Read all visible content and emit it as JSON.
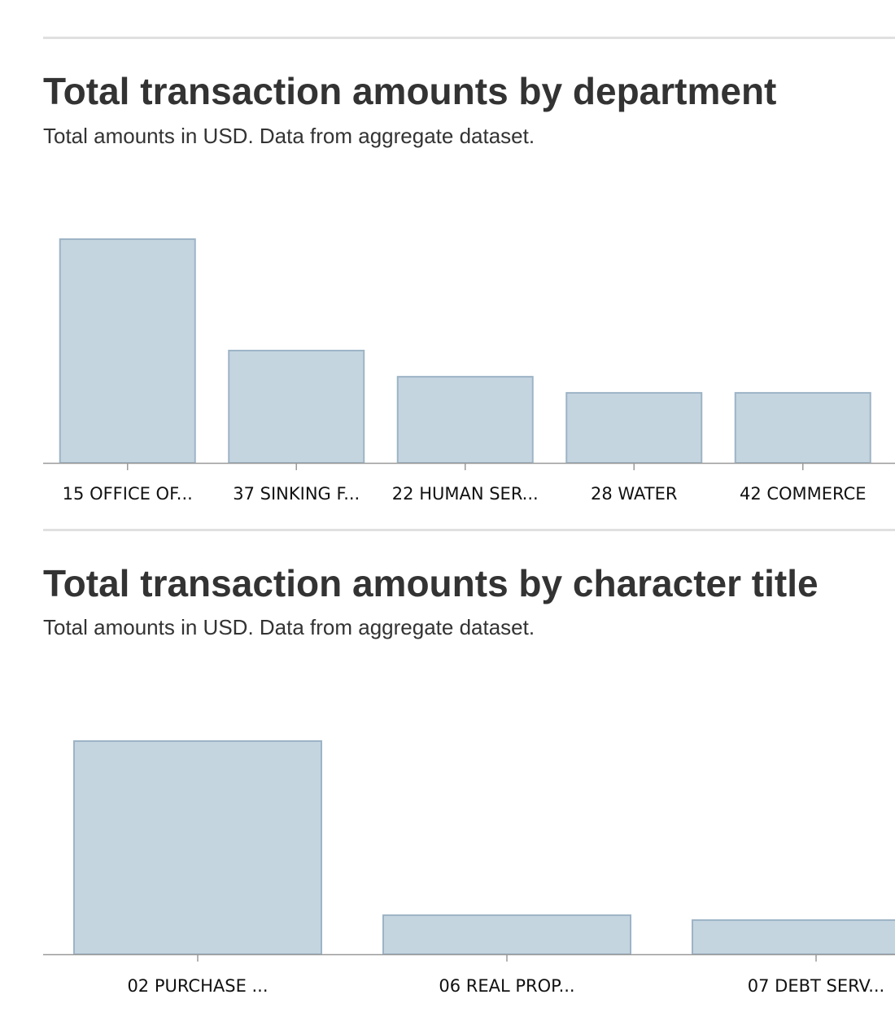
{
  "colors": {
    "bar_fill": "#c5d5e0",
    "bar_stroke": "#9db4c6",
    "axis": "#9a9a9a",
    "rule": "#e0e0e0",
    "text": "#333333"
  },
  "chart_data": [
    {
      "type": "bar",
      "title": "Total transaction amounts by department",
      "subtitle": "Total amounts in USD. Data from aggregate dataset.",
      "categories": [
        "15 OFFICE OF...",
        "37 SINKING F...",
        "22 HUMAN SER...",
        "28 WATER",
        "42 COMMERCE"
      ],
      "values": [
        100,
        50.2,
        38.5,
        31.3,
        31.3
      ],
      "ylim": [
        0,
        100
      ],
      "xlabel": "",
      "ylabel": "",
      "grid": false
    },
    {
      "type": "bar",
      "title": "Total transaction amounts by character title",
      "subtitle": "Total amounts in USD. Data from aggregate dataset.",
      "categories": [
        "02 PURCHASE ...",
        "06 REAL PROP...",
        "07 DEBT SERV..."
      ],
      "values": [
        100,
        18.3,
        16.0
      ],
      "ylim": [
        0,
        100
      ],
      "xlabel": "",
      "ylabel": "",
      "grid": false
    }
  ]
}
